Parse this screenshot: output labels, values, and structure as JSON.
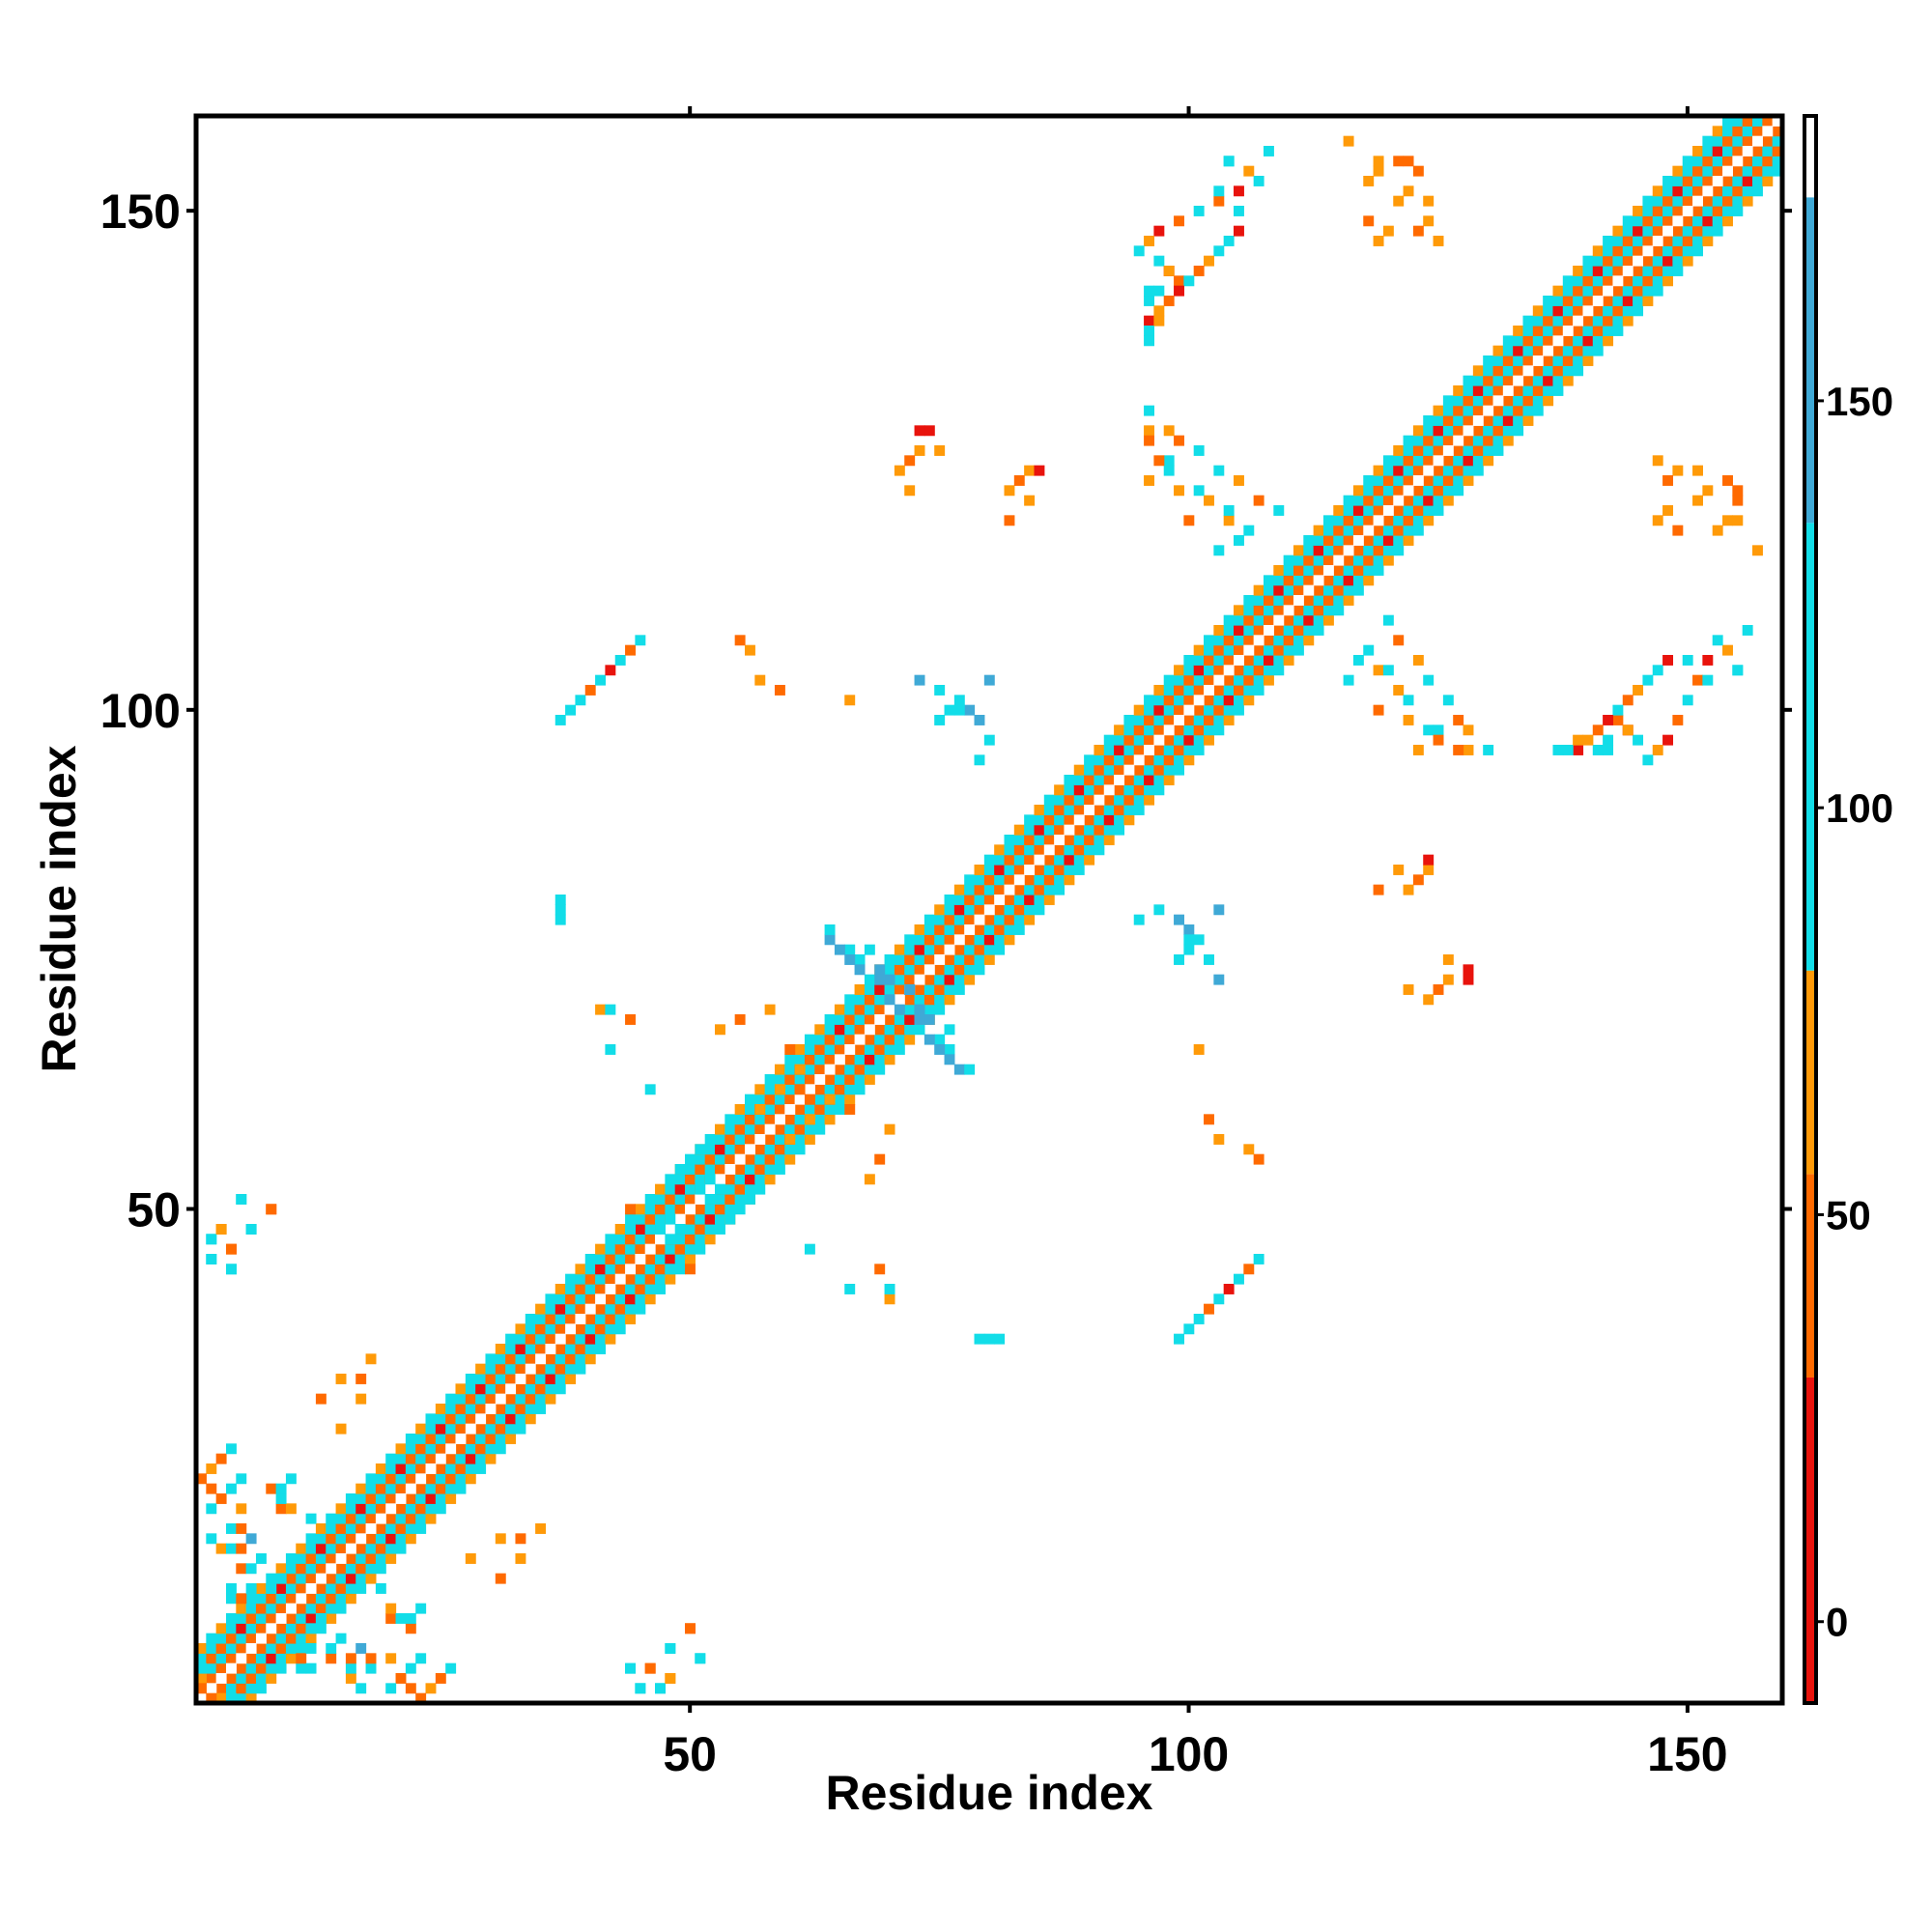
{
  "chart_data": {
    "type": "heatmap",
    "title": "",
    "xlabel": "Residue index",
    "ylabel": "Residue index",
    "xlim": [
      1,
      159
    ],
    "ylim": [
      1,
      159
    ],
    "x_ticks": [
      50,
      100,
      150
    ],
    "y_ticks": [
      50,
      100,
      150
    ],
    "colorbar": {
      "range": [
        -10,
        185
      ],
      "ticks": [
        0,
        50,
        100,
        150
      ],
      "bins": [
        {
          "from": -10,
          "to": 30,
          "color": "#e8130c"
        },
        {
          "from": 30,
          "to": 55,
          "color": "#ff6a00"
        },
        {
          "from": 55,
          "to": 80,
          "color": "#ff9a08"
        },
        {
          "from": 80,
          "to": 135,
          "color": "#12dde8"
        },
        {
          "from": 135,
          "to": 175,
          "color": "#3fa9d6"
        },
        {
          "from": 175,
          "to": 185,
          "color": "#ffffff"
        }
      ]
    },
    "grid": false,
    "note_cells": "symmetric residue-residue matrix; cells listed as [i, j, value] for i >= j (upper triangle by symmetry)",
    "diagonal_band": {
      "start": 1,
      "end": 159,
      "offsets": {
        "1": 30,
        "2": 95,
        "3": 45,
        "4": 100,
        "5": 65
      }
    },
    "cells": [
      [
        3,
        1,
        60
      ],
      [
        2,
        1,
        40
      ],
      [
        4,
        1,
        100
      ],
      [
        11,
        4,
        100
      ],
      [
        11,
        5,
        40
      ],
      [
        12,
        4,
        100
      ],
      [
        12,
        6,
        100
      ],
      [
        14,
        5,
        40
      ],
      [
        14,
        6,
        100
      ],
      [
        16,
        3,
        60
      ],
      [
        16,
        4,
        100
      ],
      [
        16,
        5,
        40
      ],
      [
        17,
        2,
        100
      ],
      [
        17,
        6,
        150
      ],
      [
        18,
        4,
        100
      ],
      [
        18,
        5,
        40
      ],
      [
        15,
        7,
        100
      ],
      [
        12,
        8,
        100
      ],
      [
        13,
        9,
        100
      ],
      [
        20,
        9,
        40
      ],
      [
        20,
        10,
        60
      ],
      [
        21,
        9,
        100
      ],
      [
        22,
        8,
        40
      ],
      [
        22,
        9,
        100
      ],
      [
        23,
        10,
        100
      ],
      [
        19,
        12,
        100
      ],
      [
        5,
        20,
        60
      ],
      [
        3,
        21,
        40
      ],
      [
        4,
        22,
        100
      ],
      [
        2,
        20,
        100
      ],
      [
        5,
        23,
        100
      ],
      [
        2,
        24,
        60
      ],
      [
        3,
        25,
        40
      ],
      [
        4,
        26,
        100
      ],
      [
        1,
        23,
        40
      ],
      [
        2,
        22,
        40
      ],
      [
        2,
        45,
        100
      ],
      [
        2,
        47,
        100
      ],
      [
        4,
        46,
        40
      ],
      [
        4,
        44,
        100
      ],
      [
        3,
        48,
        60
      ],
      [
        6,
        48,
        100
      ],
      [
        8,
        50,
        40
      ],
      [
        5,
        51,
        100
      ],
      [
        15,
        28,
        60
      ],
      [
        13,
        31,
        40
      ],
      [
        15,
        33,
        60
      ],
      [
        17,
        31,
        60
      ],
      [
        17,
        33,
        40
      ],
      [
        18,
        35,
        60
      ],
      [
        45,
        2,
        100
      ],
      [
        47,
        2,
        100
      ],
      [
        46,
        4,
        40
      ],
      [
        44,
        4,
        100
      ],
      [
        48,
        3,
        60
      ],
      [
        48,
        6,
        100
      ],
      [
        50,
        8,
        40
      ],
      [
        51,
        5,
        100
      ],
      [
        44,
        48,
        100
      ],
      [
        44,
        50,
        40
      ],
      [
        47,
        48,
        100
      ],
      [
        48,
        49,
        100
      ],
      [
        51,
        52,
        100
      ],
      [
        52,
        53,
        100
      ],
      [
        54,
        49,
        100
      ],
      [
        56,
        51,
        100
      ],
      [
        57,
        60,
        60
      ],
      [
        59,
        62,
        60
      ],
      [
        60,
        66,
        40
      ],
      [
        61,
        62,
        40
      ],
      [
        61,
        64,
        60
      ],
      [
        53,
        68,
        60
      ],
      [
        55,
        69,
        40
      ],
      [
        58,
        70,
        60
      ],
      [
        42,
        66,
        100
      ],
      [
        41,
        70,
        60
      ],
      [
        42,
        70,
        100
      ],
      [
        44,
        69,
        40
      ],
      [
        46,
        62,
        100
      ],
      [
        66,
        76,
        100
      ],
      [
        67,
        75,
        100
      ],
      [
        68,
        76,
        100
      ],
      [
        69,
        74,
        150
      ],
      [
        70,
        73,
        150
      ],
      [
        71,
        70,
        150
      ],
      [
        72,
        72,
        150
      ],
      [
        73,
        69,
        150
      ],
      [
        74,
        67,
        150
      ],
      [
        75,
        66,
        150
      ],
      [
        76,
        65,
        150
      ],
      [
        77,
        64,
        150
      ],
      [
        78,
        64,
        100
      ],
      [
        79,
        37,
        100
      ],
      [
        80,
        37,
        100
      ],
      [
        81,
        37,
        100
      ],
      [
        79,
        99,
        150
      ],
      [
        80,
        97,
        100
      ],
      [
        78,
        100,
        150
      ],
      [
        77,
        100,
        100
      ],
      [
        79,
        95,
        100
      ],
      [
        80,
        103,
        150
      ],
      [
        82,
        119,
        40
      ],
      [
        82,
        122,
        60
      ],
      [
        83,
        123,
        40
      ],
      [
        84,
        124,
        60
      ],
      [
        85,
        124,
        20
      ],
      [
        84,
        121,
        60
      ],
      [
        99,
        37,
        100
      ],
      [
        100,
        38,
        100
      ],
      [
        101,
        39,
        100
      ],
      [
        102,
        40,
        40
      ],
      [
        103,
        41,
        100
      ],
      [
        104,
        42,
        20
      ],
      [
        105,
        43,
        100
      ],
      [
        106,
        44,
        40
      ],
      [
        107,
        45,
        100
      ],
      [
        99,
        75,
        100
      ],
      [
        100,
        76,
        100
      ],
      [
        101,
        77,
        100
      ],
      [
        102,
        75,
        100
      ],
      [
        103,
        73,
        150
      ],
      [
        107,
        55,
        40
      ],
      [
        106,
        56,
        60
      ],
      [
        103,
        57,
        60
      ],
      [
        102,
        59,
        40
      ],
      [
        101,
        66,
        60
      ],
      [
        128,
        74,
        20
      ],
      [
        128,
        73,
        20
      ],
      [
        126,
        73,
        60
      ],
      [
        125,
        72,
        40
      ],
      [
        124,
        71,
        60
      ],
      [
        122,
        72,
        60
      ],
      [
        126,
        75,
        60
      ],
      [
        156,
        108,
        100
      ],
      [
        155,
        104,
        100
      ],
      [
        154,
        106,
        60
      ],
      [
        153,
        107,
        100
      ],
      [
        152,
        105,
        20
      ],
      [
        151,
        103,
        40
      ],
      [
        150,
        101,
        100
      ],
      [
        149,
        99,
        40
      ],
      [
        148,
        97,
        20
      ],
      [
        147,
        96,
        60
      ],
      [
        146,
        95,
        100
      ],
      [
        145,
        97,
        100
      ],
      [
        144,
        98,
        20
      ],
      [
        143,
        99,
        40
      ],
      [
        142,
        97,
        100
      ],
      [
        141,
        96,
        100
      ],
      [
        130,
        96,
        100
      ],
      [
        128,
        96,
        60
      ],
      [
        127,
        99,
        40
      ],
      [
        126,
        101,
        100
      ],
      [
        125,
        98,
        100
      ],
      [
        124,
        103,
        100
      ],
      [
        123,
        105,
        60
      ],
      [
        121,
        107,
        40
      ],
      [
        120,
        109,
        100
      ],
      [
        119,
        104,
        60
      ],
      [
        118,
        106,
        100
      ],
      [
        155,
        119,
        60
      ],
      [
        155,
        121,
        40
      ],
      [
        155,
        122,
        40
      ],
      [
        153,
        118,
        60
      ],
      [
        151,
        124,
        60
      ],
      [
        149,
        124,
        60
      ],
      [
        147,
        125,
        60
      ],
      [
        148,
        123,
        40
      ],
      [
        120,
        148,
        60
      ],
      [
        121,
        151,
        60
      ],
      [
        122,
        152,
        60
      ],
      [
        123,
        154,
        40
      ],
      [
        119,
        154,
        60
      ],
      [
        116,
        157,
        60
      ],
      [
        119,
        147,
        60
      ],
      [
        118,
        149,
        40
      ],
      [
        104,
        147,
        100
      ],
      [
        105,
        148,
        20
      ],
      [
        103,
        146,
        100
      ],
      [
        102,
        145,
        60
      ],
      [
        101,
        144,
        40
      ],
      [
        100,
        143,
        100
      ],
      [
        99,
        142,
        20
      ],
      [
        98,
        141,
        40
      ],
      [
        97,
        140,
        60
      ],
      [
        96,
        139,
        20
      ],
      [
        98,
        144,
        60
      ],
      [
        96,
        142,
        100
      ],
      [
        103,
        152,
        100
      ],
      [
        105,
        150,
        100
      ],
      [
        104,
        155,
        100
      ],
      [
        103,
        116,
        100
      ],
      [
        105,
        117,
        100
      ],
      [
        104,
        120,
        100
      ],
      [
        102,
        121,
        60
      ],
      [
        101,
        122,
        100
      ],
      [
        100,
        119,
        40
      ],
      [
        99,
        122,
        60
      ],
      [
        98,
        124,
        100
      ],
      [
        97,
        125,
        40
      ],
      [
        96,
        123,
        60
      ],
      [
        96,
        127,
        40
      ],
      [
        98,
        128,
        60
      ],
      [
        96,
        138,
        100
      ],
      [
        96,
        137,
        100
      ],
      [
        97,
        139,
        60
      ]
    ]
  }
}
